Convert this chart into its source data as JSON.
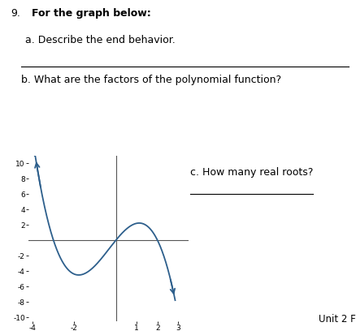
{
  "title_number": "9.",
  "title_bold": "For the graph below:",
  "question_a": "a. Describe the end behavior.",
  "question_b": "b. What are the factors of the polynomial function?",
  "question_c": "c. How many real roots?",
  "footer": "Unit 2 F",
  "graph_xlim": [
    -4.2,
    3.5
  ],
  "graph_ylim": [
    -10.5,
    11
  ],
  "graph_xticks": [
    -4,
    -2,
    1,
    2,
    3
  ],
  "graph_yticks": [
    -10,
    -8,
    -6,
    -4,
    -2,
    2,
    4,
    6,
    8,
    10
  ],
  "curve_color": "#2d5f8c",
  "axis_color": "#555555",
  "background": "#ffffff",
  "text_color": "#000000",
  "roots": [
    -3,
    0,
    2
  ],
  "scale": -0.55
}
